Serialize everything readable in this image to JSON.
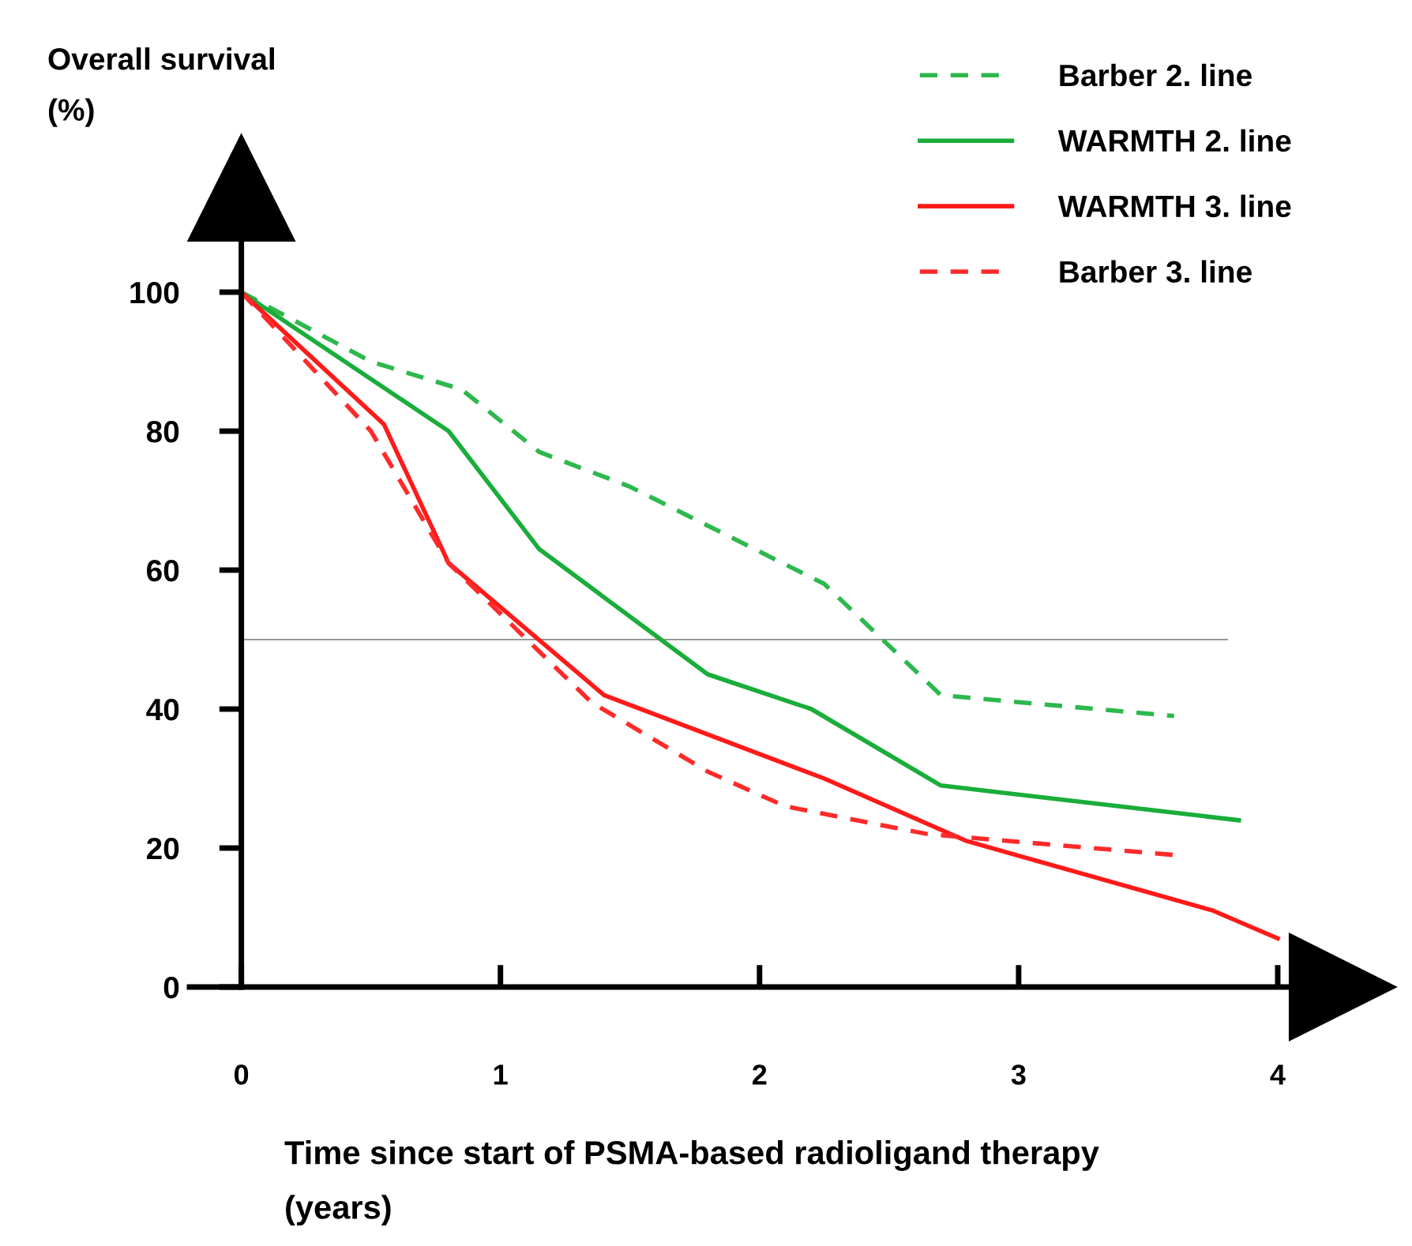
{
  "chart_data": {
    "type": "line",
    "ylabel": "Overall survival\n(%)",
    "xlabel": "Time since start of PSMA-based radioligand therapy\n(years)",
    "xlim": [
      -0.2,
      4.25
    ],
    "ylim": [
      0,
      115
    ],
    "xticks": [
      0,
      1,
      2,
      3,
      4
    ],
    "yticks": [
      0,
      20,
      40,
      60,
      80,
      100
    ],
    "grid": false,
    "legend": "top right",
    "marker": "none",
    "series": [
      {
        "name": "Barber 2. line",
        "color": "#2db84d",
        "line_style": "dashed",
        "x": [
          0,
          0.5,
          0.85,
          1.15,
          1.5,
          2.25,
          2.7,
          3.6
        ],
        "values": [
          100,
          90,
          86,
          77,
          72,
          58,
          42,
          39
        ]
      },
      {
        "name": "WARMTH 2. line",
        "color": "#1aad3a",
        "line_style": "solid",
        "x": [
          0,
          0.8,
          1.15,
          1.8,
          2.2,
          2.7,
          3.85
        ],
        "values": [
          100,
          80,
          63,
          45,
          40,
          29,
          24
        ]
      },
      {
        "name": "WARMTH 3. line",
        "color": "#ff1a1a",
        "line_style": "solid",
        "x": [
          0,
          0.55,
          0.8,
          1.4,
          2.25,
          2.8,
          3.75,
          4.0
        ],
        "values": [
          100,
          81,
          61,
          42,
          30,
          21,
          11,
          7
        ]
      },
      {
        "name": "Barber 3. line",
        "color": "#ff2a2a",
        "line_style": "dashed",
        "x": [
          0,
          0.5,
          0.8,
          1.35,
          1.8,
          2.1,
          2.65,
          3.6
        ],
        "values": [
          100,
          80,
          61,
          41,
          31,
          26,
          22,
          19
        ]
      }
    ],
    "ref_lines": [
      {
        "axis": "y",
        "value": 50,
        "color": "#999999",
        "line_style": "solid"
      }
    ]
  }
}
